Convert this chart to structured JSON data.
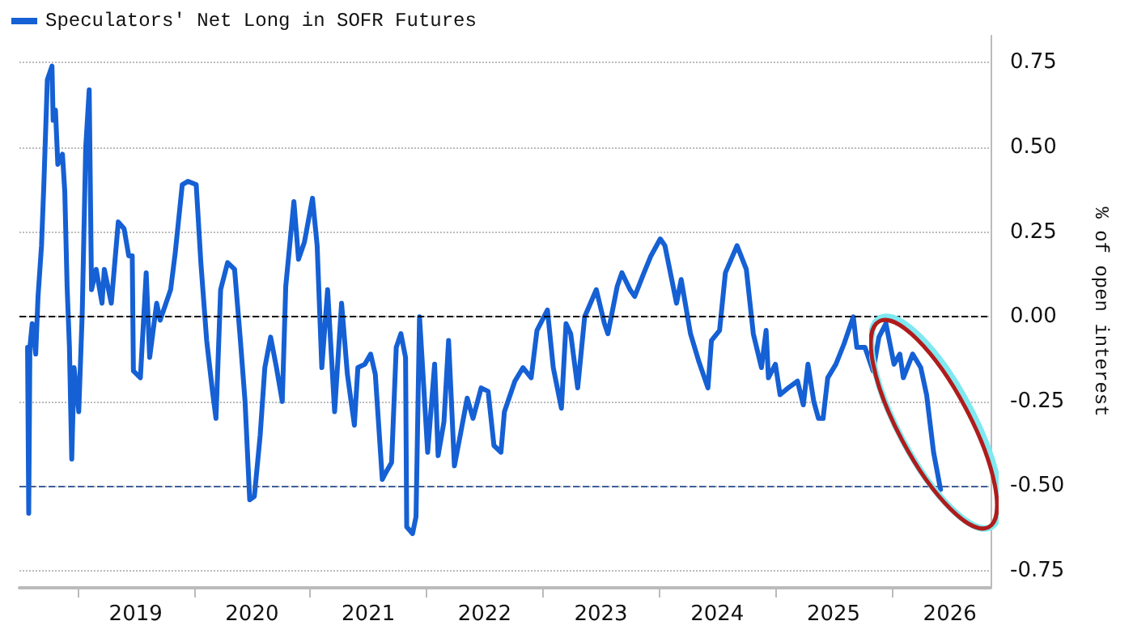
{
  "chart_data": {
    "type": "line",
    "ylabel": "% of open interest",
    "x": [
      2018.57,
      2018.58,
      2018.59,
      2018.61,
      2018.64,
      2018.66,
      2018.69,
      2018.71,
      2018.74,
      2018.78,
      2018.79,
      2018.81,
      2018.83,
      2018.87,
      2018.89,
      2018.91,
      2018.93,
      2018.95,
      2018.97,
      2019.01,
      2019.04,
      2019.07,
      2019.1,
      2019.12,
      2019.16,
      2019.21,
      2019.23,
      2019.29,
      2019.35,
      2019.4,
      2019.44,
      2019.47,
      2019.48,
      2019.54,
      2019.59,
      2019.62,
      2019.68,
      2019.71,
      2019.8,
      2019.84,
      2019.9,
      2019.95,
      2020.02,
      2020.06,
      2020.11,
      2020.16,
      2020.19,
      2020.23,
      2020.29,
      2020.35,
      2020.4,
      2020.44,
      2020.48,
      2020.52,
      2020.57,
      2020.61,
      2020.66,
      2020.71,
      2020.76,
      2020.79,
      2020.86,
      2020.9,
      2020.95,
      2021.02,
      2021.06,
      2021.1,
      2021.15,
      2021.21,
      2021.27,
      2021.32,
      2021.38,
      2021.41,
      2021.47,
      2021.52,
      2021.56,
      2021.62,
      2021.65,
      2021.7,
      2021.74,
      2021.78,
      2021.82,
      2021.83,
      2021.88,
      2021.91,
      2021.94,
      2021.97,
      2022.01,
      2022.07,
      2022.1,
      2022.15,
      2022.19,
      2022.24,
      2022.29,
      2022.35,
      2022.4,
      2022.47,
      2022.53,
      2022.58,
      2022.64,
      2022.67,
      2022.76,
      2022.83,
      2022.9,
      2022.95,
      2023.04,
      2023.09,
      2023.16,
      2023.2,
      2023.24,
      2023.3,
      2023.36,
      2023.46,
      2023.53,
      2023.56,
      2023.64,
      2023.68,
      2023.75,
      2023.79,
      2023.87,
      2023.93,
      2024.01,
      2024.05,
      2024.15,
      2024.19,
      2024.27,
      2024.34,
      2024.42,
      2024.45,
      2024.52,
      2024.57,
      2024.67,
      2024.75,
      2024.81,
      2024.88,
      2024.92,
      2024.94,
      2025.0,
      2025.04,
      2025.11,
      2025.19,
      2025.24,
      2025.28,
      2025.33,
      2025.37,
      2025.41,
      2025.45,
      2025.52,
      2025.59,
      2025.67,
      2025.7,
      2025.77,
      2025.84,
      2025.89,
      2025.95,
      2026.02,
      2026.07,
      2026.1,
      2026.18,
      2026.25,
      2026.3,
      2026.36,
      2026.42
    ],
    "series": [
      {
        "name": "Speculators' Net Long in SOFR Futures",
        "color": "#1560d4",
        "values": [
          -0.09,
          -0.58,
          -0.09,
          -0.02,
          -0.11,
          0.06,
          0.21,
          0.39,
          0.7,
          0.74,
          0.58,
          0.61,
          0.45,
          0.48,
          0.37,
          0.09,
          -0.09,
          -0.42,
          -0.15,
          -0.28,
          0.01,
          0.5,
          0.67,
          0.08,
          0.14,
          0.04,
          0.14,
          0.04,
          0.28,
          0.26,
          0.18,
          0.18,
          -0.16,
          -0.18,
          0.13,
          -0.12,
          0.04,
          -0.01,
          0.08,
          0.19,
          0.39,
          0.4,
          0.39,
          0.16,
          -0.07,
          -0.22,
          -0.3,
          0.08,
          0.16,
          0.14,
          -0.07,
          -0.25,
          -0.54,
          -0.53,
          -0.35,
          -0.15,
          -0.06,
          -0.15,
          -0.25,
          0.09,
          0.34,
          0.17,
          0.22,
          0.35,
          0.21,
          -0.15,
          0.08,
          -0.28,
          0.04,
          -0.17,
          -0.32,
          -0.15,
          -0.14,
          -0.11,
          -0.17,
          -0.48,
          -0.46,
          -0.43,
          -0.09,
          -0.05,
          -0.12,
          -0.62,
          -0.64,
          -0.59,
          0.0,
          -0.17,
          -0.4,
          -0.14,
          -0.41,
          -0.31,
          -0.07,
          -0.44,
          -0.35,
          -0.24,
          -0.3,
          -0.21,
          -0.22,
          -0.38,
          -0.4,
          -0.28,
          -0.19,
          -0.15,
          -0.18,
          -0.04,
          0.02,
          -0.15,
          -0.27,
          -0.02,
          -0.05,
          -0.21,
          0.0,
          0.08,
          -0.02,
          -0.05,
          0.09,
          0.13,
          0.08,
          0.06,
          0.13,
          0.18,
          0.23,
          0.21,
          0.04,
          0.11,
          -0.05,
          -0.13,
          -0.21,
          -0.07,
          -0.04,
          0.13,
          0.21,
          0.14,
          -0.05,
          -0.15,
          -0.04,
          -0.18,
          -0.14,
          -0.23,
          -0.21,
          -0.19,
          -0.26,
          -0.14,
          -0.25,
          -0.3,
          -0.3,
          -0.18,
          -0.14,
          -0.08,
          0.0,
          -0.09,
          -0.09,
          -0.16,
          -0.06,
          -0.02,
          -0.14,
          -0.11,
          -0.18,
          -0.11,
          -0.15,
          -0.23,
          -0.4,
          -0.51
        ]
      }
    ],
    "xlim": [
      2018.5,
      2026.85
    ],
    "xticks": [
      {
        "value": 2019,
        "label": null
      },
      {
        "value": 2019.5,
        "label": "2019"
      },
      {
        "value": 2020,
        "label": null
      },
      {
        "value": 2020.5,
        "label": "2020"
      },
      {
        "value": 2021,
        "label": null
      },
      {
        "value": 2021.5,
        "label": "2021"
      },
      {
        "value": 2022,
        "label": null
      },
      {
        "value": 2022.5,
        "label": "2022"
      },
      {
        "value": 2023,
        "label": null
      },
      {
        "value": 2023.5,
        "label": "2023"
      },
      {
        "value": 2024,
        "label": null
      },
      {
        "value": 2024.5,
        "label": "2024"
      },
      {
        "value": 2025,
        "label": null
      },
      {
        "value": 2025.5,
        "label": "2025"
      },
      {
        "value": 2026,
        "label": null
      },
      {
        "value": 2026.5,
        "label": "2026"
      }
    ],
    "ylim": [
      -0.8,
      0.83
    ],
    "yticks": [
      {
        "value": -0.75,
        "label": "-0.75"
      },
      {
        "value": -0.5,
        "label": "-0.50"
      },
      {
        "value": -0.25,
        "label": "-0.25"
      },
      {
        "value": 0,
        "label": "0.00"
      },
      {
        "value": 0.25,
        "label": "0.25"
      },
      {
        "value": 0.5,
        "label": "0.50"
      },
      {
        "value": 0.75,
        "label": "0.75"
      }
    ],
    "grid": "y",
    "legend": "top left",
    "marker": "none",
    "line_style": "solid",
    "ref_lines": [
      {
        "axis": "y",
        "value": 0,
        "color": "#000000",
        "line_style": "dashed"
      },
      {
        "axis": "y",
        "value": -0.5,
        "color": "#3d5f9a",
        "line_style": "dashed"
      }
    ]
  }
}
